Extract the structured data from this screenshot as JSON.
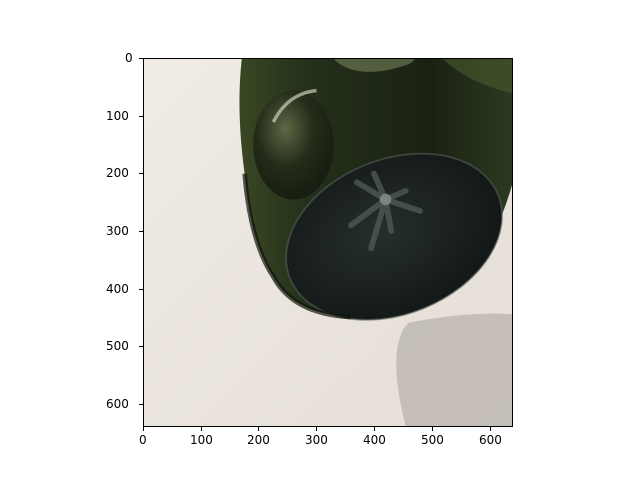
{
  "image": {
    "subject": "dark-green-glass-bottle-on-white-surface",
    "palette": {
      "surface": "#ede7e0",
      "glass_dark": "#1d2414",
      "glass_mid": "#2e3a1c",
      "glass_highlight": "#7c8a55",
      "shadow": "#bdb7b2"
    }
  },
  "axes": {
    "x_ticks": [
      "0",
      "100",
      "200",
      "300",
      "400",
      "500",
      "600"
    ],
    "y_ticks": [
      "0",
      "100",
      "200",
      "300",
      "400",
      "500",
      "600"
    ],
    "x_range": [
      0,
      640
    ],
    "y_range": [
      640,
      0
    ]
  }
}
